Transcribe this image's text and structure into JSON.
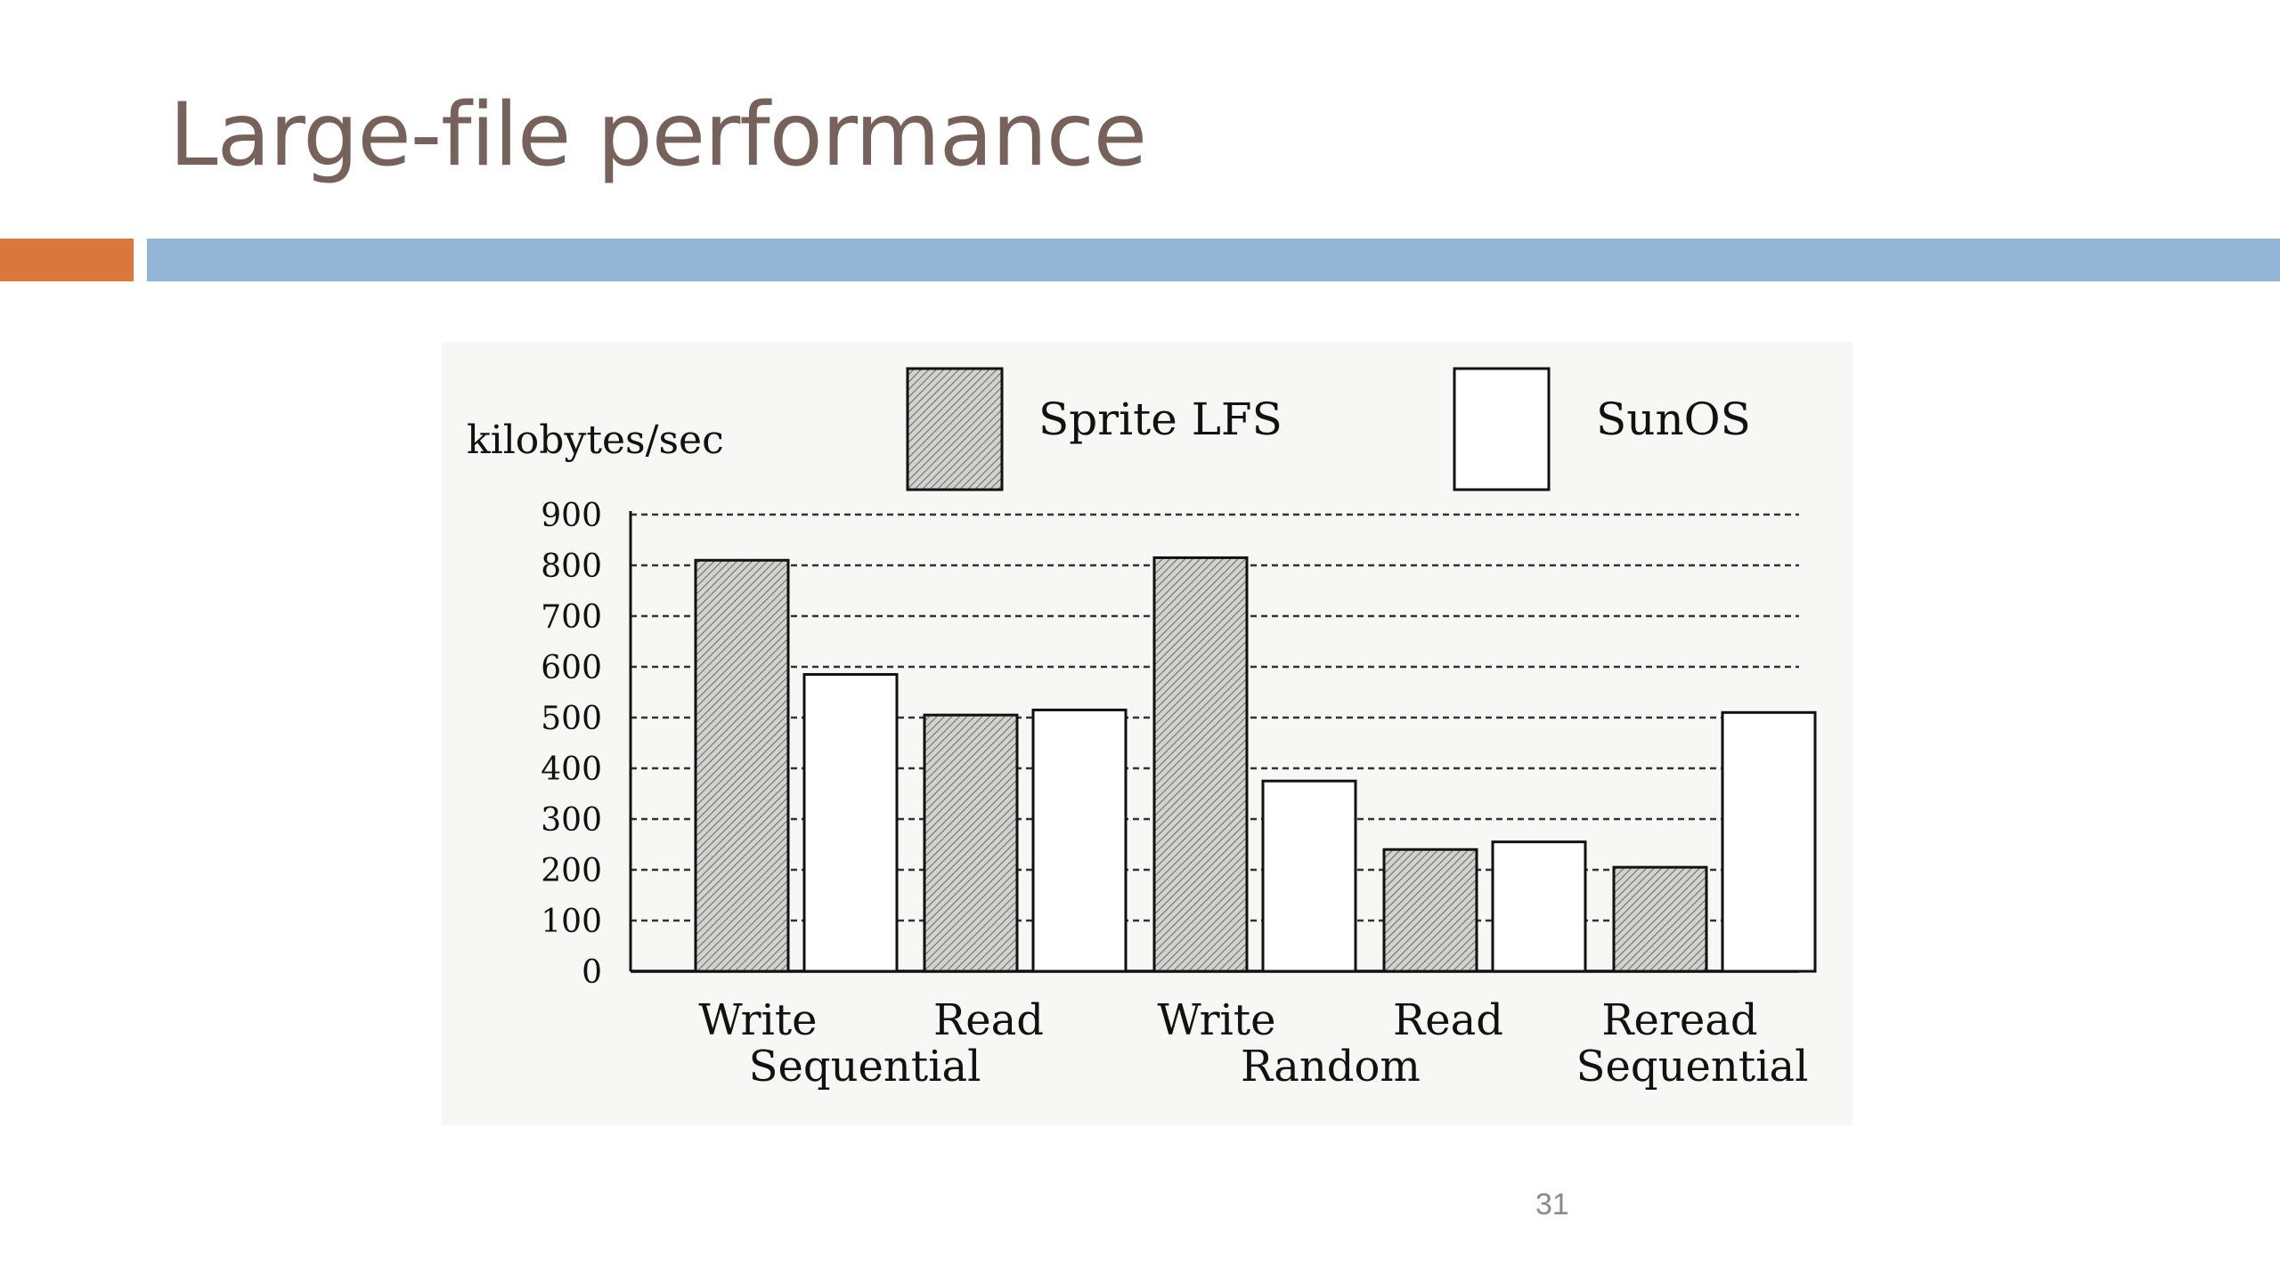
{
  "slide": {
    "title": "Large-file performance",
    "page_number": "31"
  },
  "colors": {
    "title": "#76625a",
    "accent_bar": "#d9773c",
    "main_bar": "#94b6d6",
    "sprite_fill": "hatched-gray",
    "sunos_fill": "#ffffff"
  },
  "chart_data": {
    "type": "bar",
    "ylabel": "kilobytes/sec",
    "ylim": [
      0,
      900
    ],
    "yticks": [
      "900",
      "800",
      "700",
      "600",
      "500",
      "400",
      "300",
      "200",
      "100",
      "0"
    ],
    "grid": "dashed horizontal",
    "legend_position": "top",
    "categories": [
      "Write",
      "Read",
      "Write",
      "Read",
      "Reread"
    ],
    "groups": [
      {
        "label": "Sequential",
        "span": [
          0,
          1
        ]
      },
      {
        "label": "Random",
        "span": [
          2,
          3
        ]
      },
      {
        "label": "Sequential",
        "span": [
          4,
          4
        ]
      }
    ],
    "series": [
      {
        "name": "Sprite LFS",
        "values": [
          810,
          505,
          815,
          240,
          205
        ]
      },
      {
        "name": "SunOS",
        "values": [
          585,
          515,
          375,
          255,
          510
        ]
      }
    ]
  }
}
